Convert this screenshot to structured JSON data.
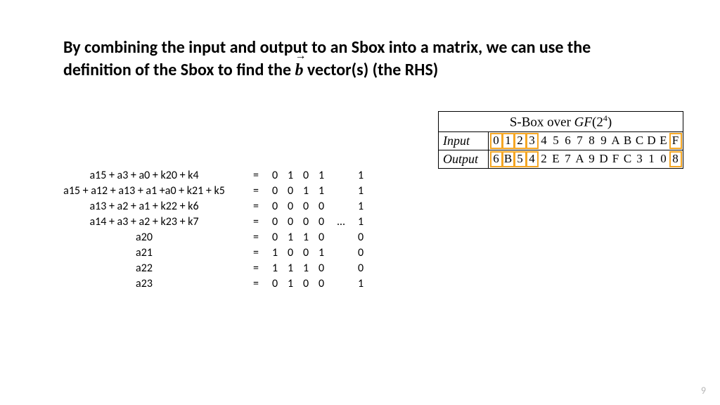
{
  "title": {
    "pre": "By combining the input and output to an Sbox into a matrix, we can use the definition of the Sbox to find the ",
    "b": "b",
    "arrow": "→",
    "post": " vector(s) (the RHS)"
  },
  "equations": {
    "rows": [
      {
        "lhs": "a15 + a3 + a0 + k20 + k4",
        "cols": [
          "0",
          "1",
          "0",
          "1"
        ],
        "last": "1"
      },
      {
        "lhs": "a15 + a12 + a13 + a1 +a0 + k21 + k5",
        "cols": [
          "0",
          "0",
          "1",
          "1"
        ],
        "last": "1"
      },
      {
        "lhs": "a13 + a2 + a1 + k22 + k6",
        "cols": [
          "0",
          "0",
          "0",
          "0"
        ],
        "last": "1"
      },
      {
        "lhs": "a14 + a3 + a2 + k23 + k7",
        "cols": [
          "0",
          "0",
          "0",
          "0"
        ],
        "last": "1"
      },
      {
        "lhs": "a20",
        "cols": [
          "0",
          "1",
          "1",
          "0"
        ],
        "last": "0"
      },
      {
        "lhs": "a21",
        "cols": [
          "1",
          "0",
          "0",
          "1"
        ],
        "last": "0"
      },
      {
        "lhs": "a22",
        "cols": [
          "1",
          "1",
          "1",
          "0"
        ],
        "last": "0"
      },
      {
        "lhs": "a23",
        "cols": [
          "0",
          "1",
          "0",
          "0"
        ],
        "last": "1"
      }
    ],
    "ellipsis_row_index": 3,
    "ellipsis": "…"
  },
  "sbox": {
    "title_pre": "S-Box over ",
    "title_gf": "GF",
    "title_open": "(2",
    "title_exp": "4",
    "title_close": ")",
    "input_label": "Input",
    "output_label": "Output",
    "inputs": [
      "0",
      "1",
      "2",
      "3",
      "4",
      "5",
      "6",
      "7",
      "8",
      "9",
      "A",
      "B",
      "C",
      "D",
      "E",
      "F"
    ],
    "outputs": [
      "6",
      "B",
      "5",
      "4",
      "2",
      "E",
      "7",
      "A",
      "9",
      "D",
      "F",
      "C",
      "3",
      "1",
      "0",
      "8"
    ],
    "highlight_cols": [
      0,
      1,
      2,
      3,
      15
    ],
    "highlight_color": "#f5a623"
  },
  "page_number": "9",
  "colors": {
    "text": "#000000",
    "background": "#ffffff",
    "pagenum": "#b7b7b7"
  }
}
